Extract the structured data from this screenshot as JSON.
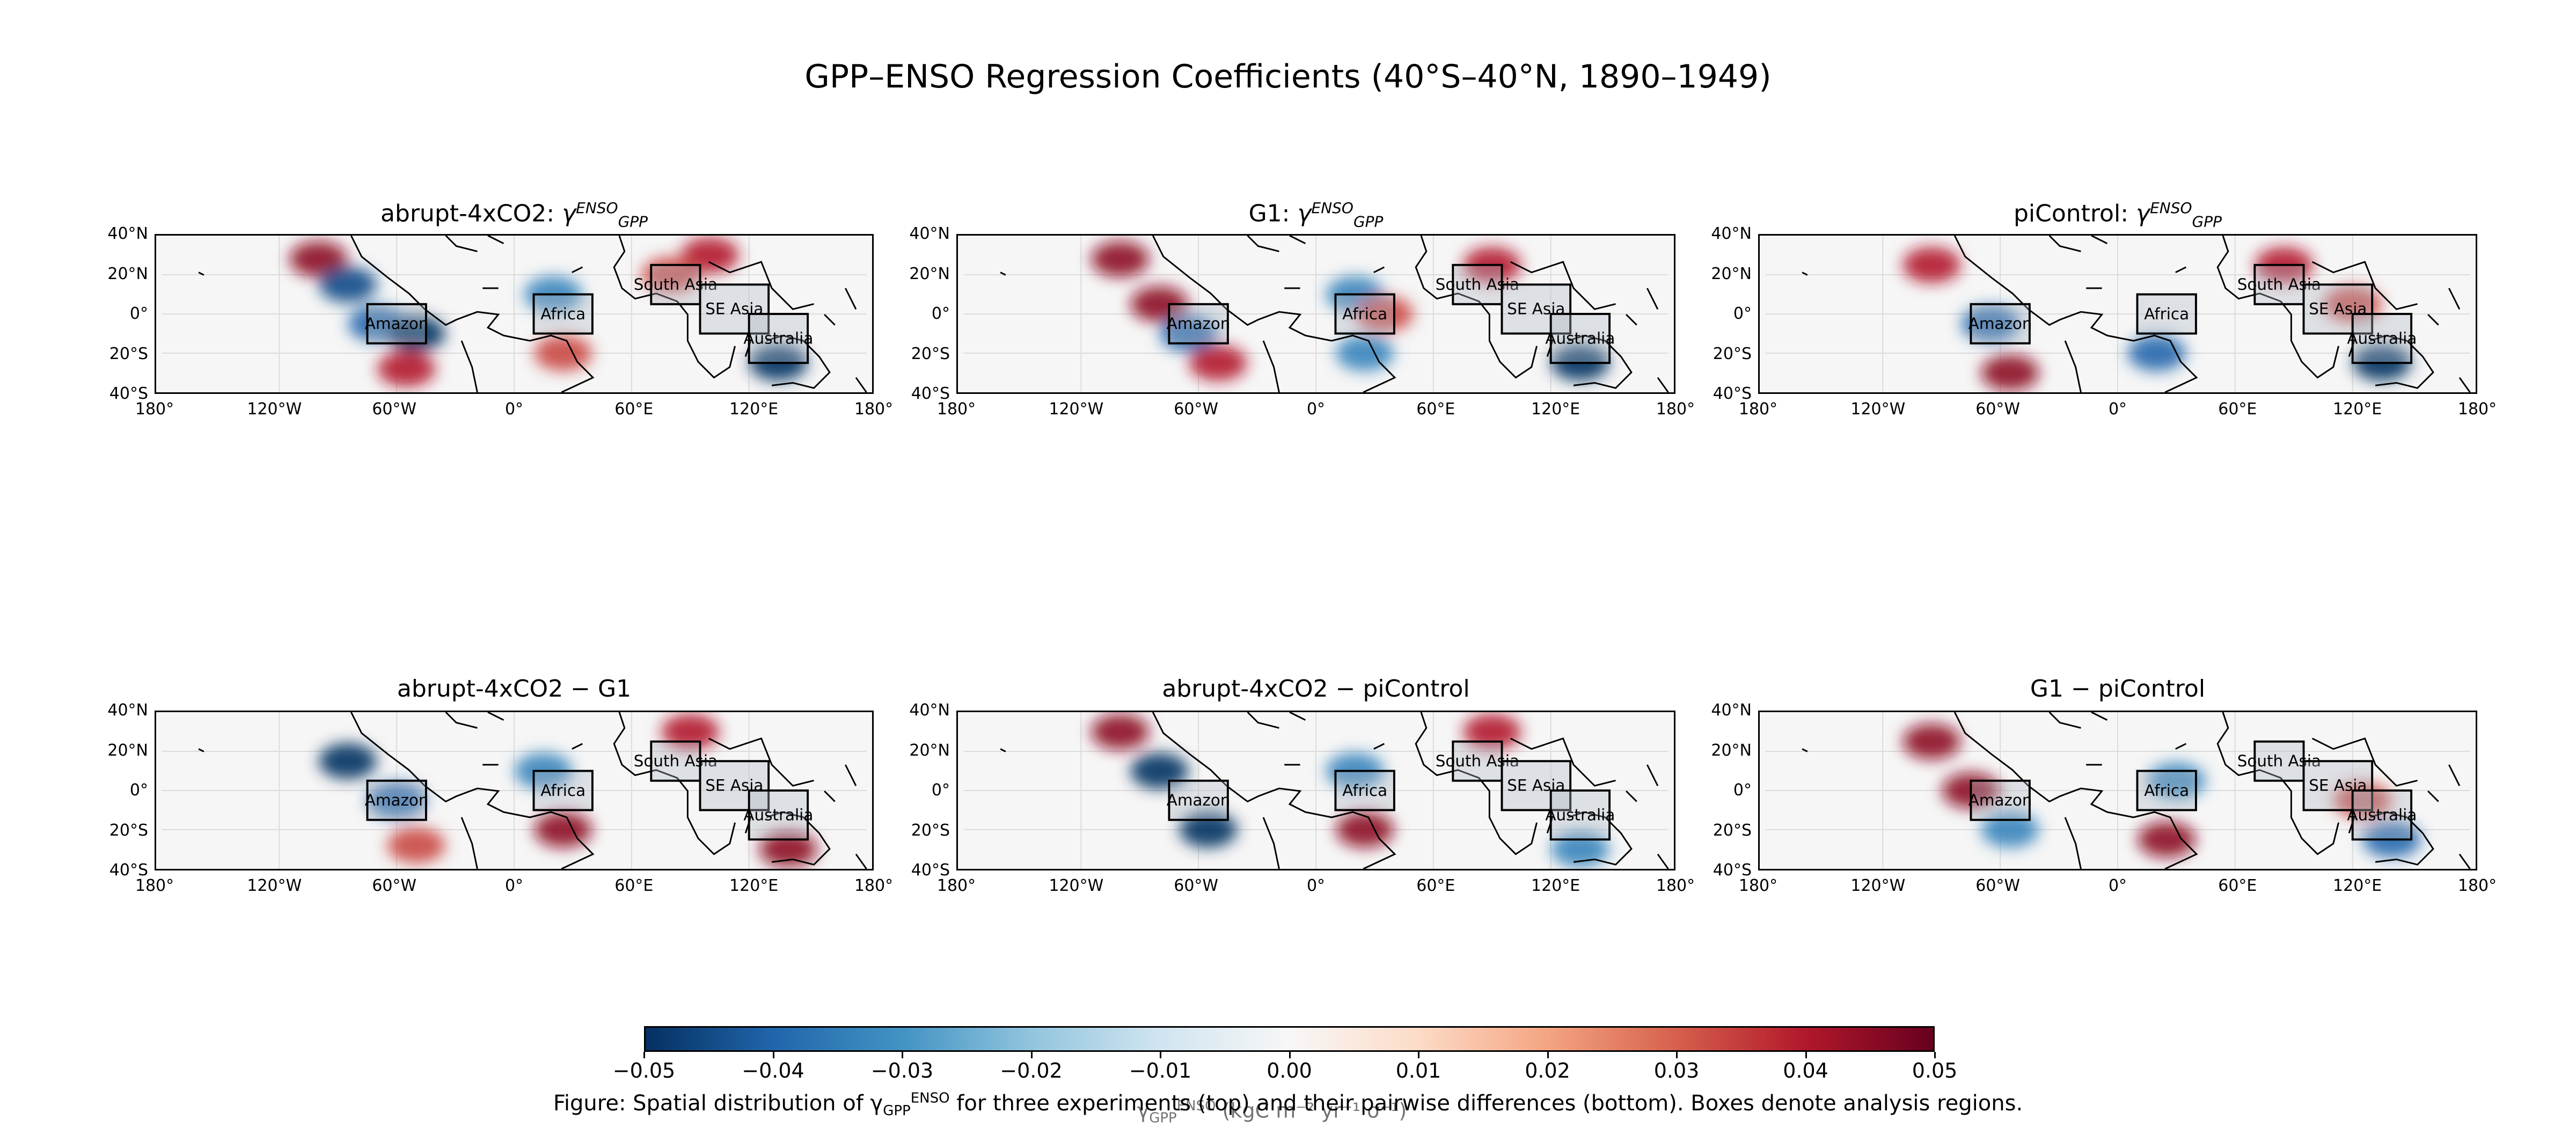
{
  "figure": {
    "title": "GPP–ENSO Regression Coefficients (40°S–40°N, 1890–1949)",
    "caption": "Figure: Spatial distribution of γGPP ENSO for three experiments (top) and their pairwise differences (bottom). Boxes denote analysis regions.",
    "colorbar_label": "γGPP ENSO (kgC m⁻² yr⁻¹ σ⁻¹)"
  },
  "chart_data": {
    "type": "heatmap",
    "projection": "PlateCarree",
    "lon_range": [
      -180,
      180
    ],
    "lat_range": [
      -40,
      40
    ],
    "x_ticks": [
      "180°",
      "120°W",
      "60°W",
      "0°",
      "60°E",
      "120°E",
      "180°"
    ],
    "y_ticks": [
      "40°N",
      "20°N",
      "0°",
      "20°S",
      "40°S"
    ],
    "colormap": "RdBu_r",
    "colors": {
      "neg_max": "#053061",
      "neg_mid": "#4393c3",
      "neutral": "#f7f7f7",
      "pos_mid": "#d6604d",
      "pos_max": "#67001f",
      "ocean": "#f6f6f6",
      "region_fill": "#b0b8c4"
    },
    "clim": [
      -0.05,
      0.05
    ],
    "colorbar_ticks": [
      "−0.05",
      "−0.04",
      "−0.03",
      "−0.02",
      "−0.01",
      "0.00",
      "0.01",
      "0.02",
      "0.03",
      "0.04",
      "0.05"
    ],
    "colorbar_tick_values": [
      -0.05,
      -0.04,
      -0.03,
      -0.02,
      -0.01,
      0.0,
      0.01,
      0.02,
      0.03,
      0.04,
      0.05
    ],
    "regions": [
      {
        "name": "Amazon",
        "lon": [
          -75,
          -45
        ],
        "lat": [
          -15,
          5
        ]
      },
      {
        "name": "Africa",
        "lon": [
          10,
          40
        ],
        "lat": [
          -10,
          10
        ]
      },
      {
        "name": "South Asia",
        "lon": [
          70,
          95
        ],
        "lat": [
          5,
          25
        ]
      },
      {
        "name": "SE Asia",
        "lon": [
          95,
          130
        ],
        "lat": [
          -10,
          15
        ]
      },
      {
        "name": "Australia",
        "lon": [
          120,
          150
        ],
        "lat": [
          -25,
          0
        ]
      }
    ],
    "panels": [
      {
        "title": "abrupt-4xCO2: γGPP ENSO",
        "title_main": "abrupt-4xCO2: ",
        "title_sym": "γ",
        "title_sup": "ENSO",
        "title_sub": "GPP",
        "patterns": [
          {
            "lon": -100,
            "lat": 28,
            "value": 0.04
          },
          {
            "lon": -85,
            "lat": 15,
            "value": -0.04
          },
          {
            "lon": -70,
            "lat": -5,
            "value": -0.03
          },
          {
            "lon": -50,
            "lat": -10,
            "value": -0.05
          },
          {
            "lon": -55,
            "lat": -28,
            "value": 0.03
          },
          {
            "lon": 20,
            "lat": 10,
            "value": -0.02
          },
          {
            "lon": 25,
            "lat": -20,
            "value": 0.02
          },
          {
            "lon": 100,
            "lat": 30,
            "value": 0.03
          },
          {
            "lon": 135,
            "lat": -25,
            "value": -0.05
          },
          {
            "lon": 80,
            "lat": 20,
            "value": 0.02
          }
        ]
      },
      {
        "title": "G1: γGPP ENSO",
        "title_main": "G1: ",
        "title_sym": "γ",
        "title_sup": "ENSO",
        "title_sub": "GPP",
        "patterns": [
          {
            "lon": -100,
            "lat": 28,
            "value": 0.04
          },
          {
            "lon": -80,
            "lat": 5,
            "value": 0.04
          },
          {
            "lon": -65,
            "lat": -10,
            "value": -0.03
          },
          {
            "lon": -50,
            "lat": -25,
            "value": 0.03
          },
          {
            "lon": 20,
            "lat": 10,
            "value": -0.02
          },
          {
            "lon": 25,
            "lat": -20,
            "value": -0.02
          },
          {
            "lon": 90,
            "lat": 25,
            "value": 0.03
          },
          {
            "lon": 135,
            "lat": -25,
            "value": -0.05
          },
          {
            "lon": 35,
            "lat": 0,
            "value": 0.02
          }
        ]
      },
      {
        "title": "piControl: γGPP ENSO",
        "title_main": "piControl: ",
        "title_sym": "γ",
        "title_sup": "ENSO",
        "title_sub": "GPP",
        "patterns": [
          {
            "lon": -95,
            "lat": 25,
            "value": 0.03
          },
          {
            "lon": -65,
            "lat": -5,
            "value": -0.03
          },
          {
            "lon": -55,
            "lat": -30,
            "value": 0.04
          },
          {
            "lon": 20,
            "lat": -20,
            "value": -0.03
          },
          {
            "lon": 85,
            "lat": 25,
            "value": 0.03
          },
          {
            "lon": 135,
            "lat": -25,
            "value": -0.05
          },
          {
            "lon": 120,
            "lat": 5,
            "value": 0.02
          }
        ]
      },
      {
        "title": "abrupt-4xCO2 − G1",
        "title_main": "abrupt-4xCO2 − G1",
        "patterns": [
          {
            "lon": -85,
            "lat": 15,
            "value": -0.05
          },
          {
            "lon": -60,
            "lat": -5,
            "value": -0.03
          },
          {
            "lon": -50,
            "lat": -28,
            "value": 0.02
          },
          {
            "lon": 25,
            "lat": -20,
            "value": 0.04
          },
          {
            "lon": 15,
            "lat": 10,
            "value": -0.02
          },
          {
            "lon": 90,
            "lat": 30,
            "value": 0.03
          },
          {
            "lon": 140,
            "lat": -30,
            "value": 0.04
          }
        ]
      },
      {
        "title": "abrupt-4xCO2 − piControl",
        "title_main": "abrupt-4xCO2 − piControl",
        "patterns": [
          {
            "lon": -100,
            "lat": 30,
            "value": 0.04
          },
          {
            "lon": -80,
            "lat": 10,
            "value": -0.05
          },
          {
            "lon": -55,
            "lat": -20,
            "value": -0.05
          },
          {
            "lon": 25,
            "lat": -20,
            "value": 0.04
          },
          {
            "lon": 20,
            "lat": 10,
            "value": -0.02
          },
          {
            "lon": 90,
            "lat": 30,
            "value": 0.03
          },
          {
            "lon": 135,
            "lat": -30,
            "value": -0.02
          }
        ]
      },
      {
        "title": "G1 − piControl",
        "title_main": "G1 − piControl",
        "patterns": [
          {
            "lon": -95,
            "lat": 25,
            "value": 0.04
          },
          {
            "lon": -75,
            "lat": 0,
            "value": 0.04
          },
          {
            "lon": -55,
            "lat": -20,
            "value": -0.02
          },
          {
            "lon": 25,
            "lat": -25,
            "value": 0.04
          },
          {
            "lon": 30,
            "lat": 5,
            "value": -0.02
          },
          {
            "lon": 140,
            "lat": -25,
            "value": -0.03
          },
          {
            "lon": 125,
            "lat": -5,
            "value": 0.02
          }
        ]
      }
    ]
  }
}
